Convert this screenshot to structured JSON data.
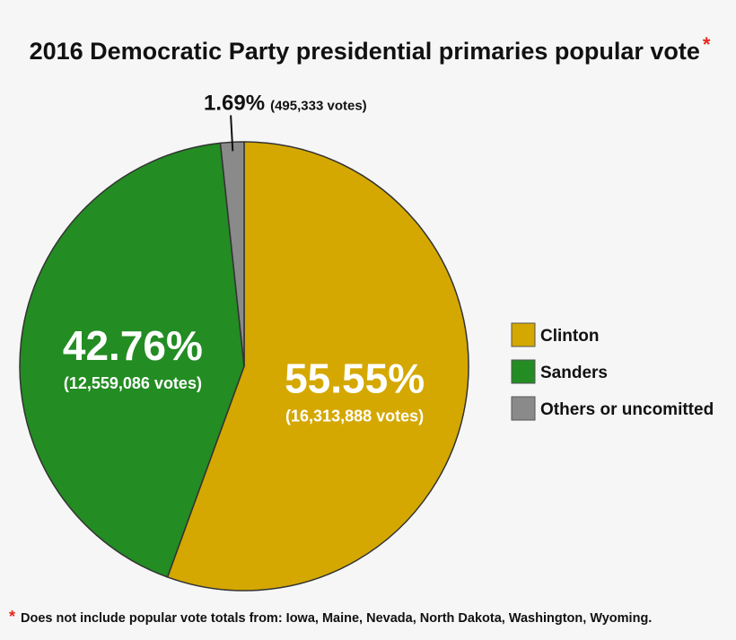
{
  "colors": {
    "clinton": "#d4a800",
    "sanders": "#238c23",
    "others": "#8a8a8a",
    "asterisk": "#e8261b"
  },
  "chart_data": {
    "type": "pie",
    "title": "2016 Democratic Party presidential primaries popular vote",
    "title_marker": "*",
    "legend_position": "right",
    "slices": [
      {
        "label": "Clinton",
        "percent": 55.55,
        "percent_label": "55.55%",
        "votes_label": "(16,313,888 votes)",
        "color": "#d4a800"
      },
      {
        "label": "Sanders",
        "percent": 42.76,
        "percent_label": "42.76%",
        "votes_label": "(12,559,086 votes)",
        "color": "#238c23"
      },
      {
        "label": "Others or uncomitted",
        "percent": 1.69,
        "percent_label": "1.69%",
        "votes_label": "(495,333 votes)",
        "color": "#8a8a8a"
      }
    ],
    "footnote": {
      "marker": "*",
      "text": "Does not include popular vote totals from: Iowa, Maine, Nevada, North Dakota, Washington, Wyoming."
    }
  }
}
